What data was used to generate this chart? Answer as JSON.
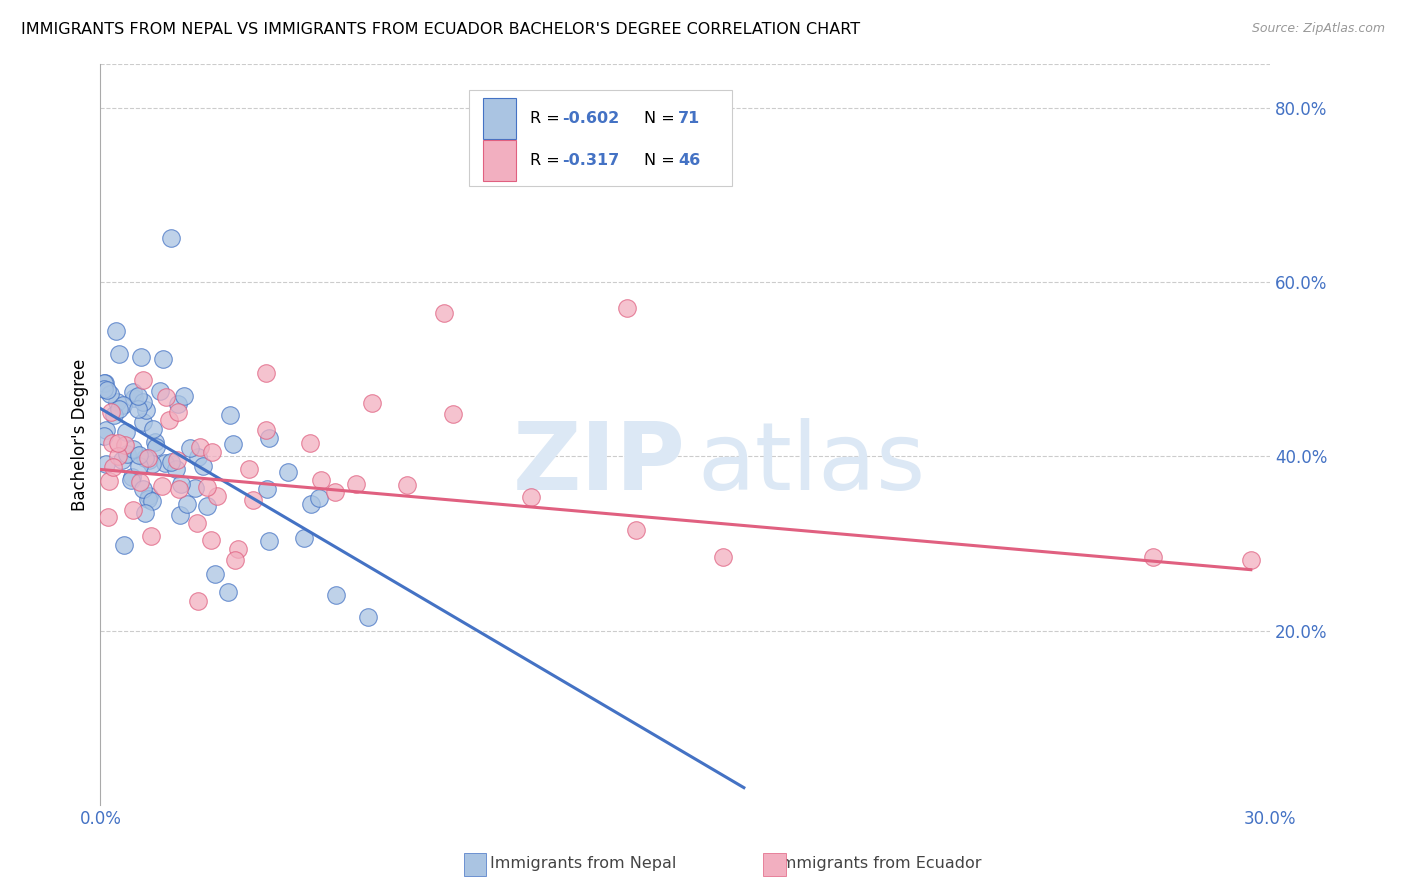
{
  "title": "IMMIGRANTS FROM NEPAL VS IMMIGRANTS FROM ECUADOR BACHELOR'S DEGREE CORRELATION CHART",
  "source": "Source: ZipAtlas.com",
  "ylabel": "Bachelor's Degree",
  "legend_r1": "-0.602",
  "legend_n1": "71",
  "legend_r2": "-0.317",
  "legend_n2": "46",
  "legend_label1": "Immigrants from Nepal",
  "legend_label2": "Immigrants from Ecuador",
  "right_ytick_labels": [
    "80.0%",
    "60.0%",
    "40.0%",
    "20.0%"
  ],
  "right_ytick_values": [
    0.8,
    0.6,
    0.4,
    0.2
  ],
  "color_nepal": "#aac4e2",
  "color_ecuador": "#f2afc0",
  "color_line_nepal": "#4472c4",
  "color_line_ecuador": "#e06080",
  "xlim": [
    0.0,
    0.3
  ],
  "ylim": [
    0.0,
    0.85
  ],
  "nepal_line_x0": 0.0,
  "nepal_line_y0": 0.455,
  "nepal_line_x1": 0.165,
  "nepal_line_y1": 0.02,
  "ecuador_line_x0": 0.0,
  "ecuador_line_y0": 0.385,
  "ecuador_line_x1": 0.295,
  "ecuador_line_y1": 0.27
}
